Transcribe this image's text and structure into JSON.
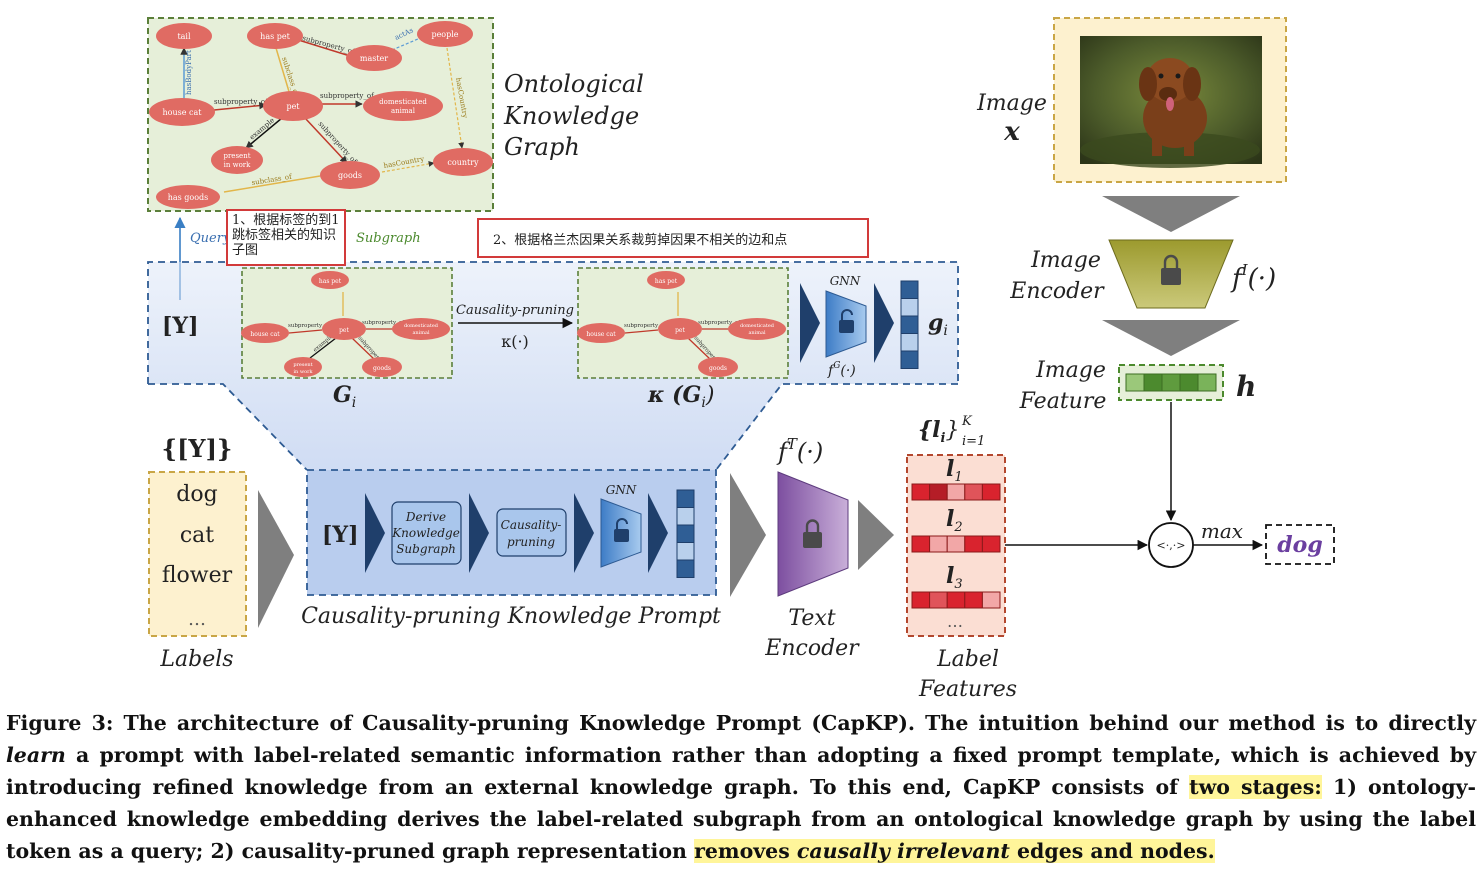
{
  "graph": {
    "nodes": {
      "tail": "tail",
      "has_pet": "has pet",
      "people": "people",
      "master": "master",
      "house_cat": "house cat",
      "pet": "pet",
      "domesticated_line1": "domesticated",
      "domesticated_line2": "animal",
      "present_line1": "present",
      "present_line2": "in work",
      "goods": "goods",
      "country": "country",
      "has_goods": "has goods"
    },
    "edges": {
      "hasBodyPart": "hasBodyPart",
      "subproperty_of": "subproperty_of",
      "subclass_of": "subclass_of",
      "acts": "actAs",
      "hasCountry": "hasCountry",
      "example": "example"
    },
    "title_line1": "Ontological",
    "title_line2": "Knowledge",
    "title_line3": "Graph"
  },
  "annotations": {
    "note1": "1、根据标签的到1跳标签相关的知识子图",
    "note2": "2、根据格兰杰因果关系裁剪掉因果不相关的边和点"
  },
  "labels": {
    "query": "Query",
    "subgraph": "Subgraph",
    "y": "[Y]",
    "y_set": "{[Y]}",
    "causality_pruning": "Causality-pruning",
    "kappa": "κ(·)",
    "gnn": "GNN",
    "fg": "f",
    "fg_sup": "G",
    "fg_arg": "(·)",
    "gi": "g",
    "gi_sub": "i",
    "Gi": "G",
    "Gi_sub": "i",
    "kappa_Gi": "κ (G",
    "kappa_Gi_sub": "i",
    "kappa_Gi_end": ")",
    "derive_line1": "Derive",
    "derive_line2": "Knowledge",
    "derive_line3": "Subgraph",
    "cp_line1": "Causality-",
    "cp_line2": "pruning",
    "prompt_title": "Causality-pruning Knowledge Prompt",
    "label_items": [
      "dog",
      "cat",
      "flower",
      "…"
    ],
    "labels_title": "Labels",
    "text_encoder_line1": "Text",
    "text_encoder_line2": "Encoder",
    "ft": "f",
    "ft_sup": "T",
    "ft_arg": "(·)",
    "li_set": "{l",
    "li_set_sub": "i",
    "li_set_end": "}",
    "li_set_upper": "K",
    "li_set_lower": "i=1",
    "l1": "l",
    "l1_sub": "1",
    "l2": "l",
    "l2_sub": "2",
    "l3": "l",
    "l3_sub": "3",
    "label_dots": "…",
    "label_features_line1": "Label",
    "label_features_line2": "Features",
    "image_line1": "Image",
    "image_x": "x",
    "image_encoder_line1": "Image",
    "image_encoder_line2": "Encoder",
    "fi": "f",
    "fi_sup": "I",
    "fi_arg": "(·)",
    "image_feature_line1": "Image",
    "image_feature_line2": "Feature",
    "h": "h",
    "dot_product": "<·,·>",
    "max": "max",
    "output": "dog"
  },
  "caption": {
    "figure_label": "Figure 3:",
    "part1": " The architecture of Causality-pruning Knowledge Prompt (CapKP). The intuition behind our method is to directly ",
    "learn": "learn",
    "part2": " a prompt with label-related semantic information rather than adopting a fixed prompt template, which is achieved by introducing refined knowledge from an external knowledge graph. To this end, CapKP consists of ",
    "two_stages": "two stages:",
    "part3": " 1) ontology-enhanced knowledge embedding derives the label-related subgraph from an ontological knowledge graph by using the label token as a query; 2) causality-pruned graph representation ",
    "removes": "removes ",
    "causally_irrelevant": "causally irrelevant",
    "edges_nodes": " edges and nodes.",
    "end": ""
  },
  "colors": {
    "node_fill": "#e06b63",
    "graph_bg": "#e6efd9",
    "graph_border": "#5b7f3a",
    "prompt_bg": "#b9cdee",
    "label_bg": "#fdf1cf",
    "label_border": "#c9a646",
    "feature_bg": "#fbded3",
    "feature_red": "#d9232e",
    "encoder_olive": "#a8a23a",
    "text_encoder_purple": "#9b72b3",
    "gnn_blue": "#5b9bd5",
    "arrow_dark": "#1f3f6b",
    "arrow_gray": "#7f7f7f",
    "note_border": "#d23a3a",
    "highlight": "#fff59a"
  }
}
